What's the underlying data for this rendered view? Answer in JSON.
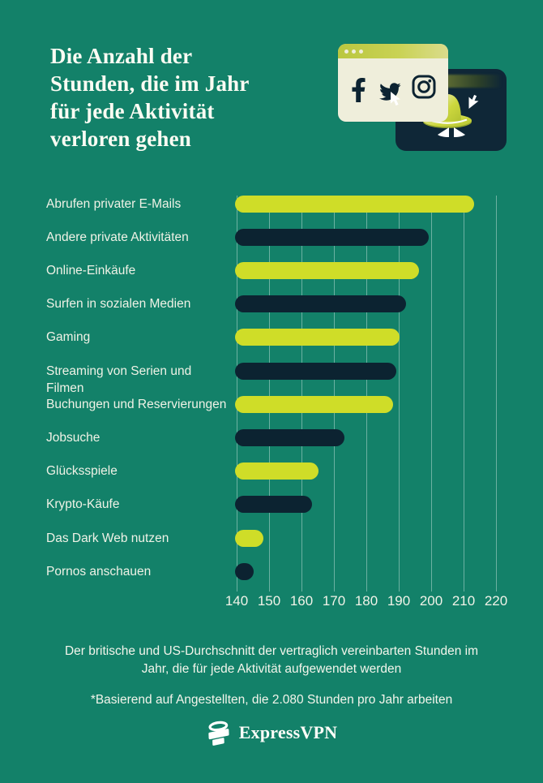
{
  "header": {
    "title_text": "Die Anzahl der\nStunden, die im Jahr\nfür jede Aktivität\nverloren gehen"
  },
  "illustration": {
    "icons": [
      "facebook-icon",
      "twitter-icon",
      "instagram-icon",
      "cursor-arrow-icon",
      "spy-hat-icon",
      "spy-eyes-icon"
    ],
    "window_dots": 3
  },
  "chart_data": {
    "type": "bar",
    "orientation": "horizontal",
    "title": "Die Anzahl der Stunden, die im Jahr für jede Aktivität verloren gehen",
    "categories": [
      "Abrufen privater E-Mails",
      "Andere private Aktivitäten",
      "Online-Einkäufe",
      "Surfen in sozialen Medien",
      "Gaming",
      "Streaming von Serien und Filmen",
      "Buchungen und Reservierungen",
      "Jobsuche",
      "Glücksspiele",
      "Krypto-Käufe",
      "Das Dark Web nutzen",
      "Pornos anschauen"
    ],
    "values": [
      213,
      199,
      196,
      192,
      190,
      189,
      188,
      173,
      165,
      163,
      148,
      145
    ],
    "unit": "Stunden pro Jahr",
    "xlim": [
      140,
      220
    ],
    "x_ticks": [
      "140",
      "150",
      "160",
      "170",
      "180",
      "190",
      "200",
      "210",
      "220"
    ],
    "grid": true,
    "legend": false,
    "bar_colors": {
      "odd_rows": "#CFDD28",
      "even_rows": "#0C2331"
    }
  },
  "footer": {
    "description": "Der britische und US-Durchschnitt der vertraglich vereinbarten Stunden im Jahr, die für jede Aktivität aufgewendet werden",
    "note": "*Basierend auf Angestellten, die 2.080 Stunden pro Jahr arbeiten",
    "brand": "ExpressVPN"
  },
  "colors": {
    "background": "#138169",
    "lime": "#CFDD28",
    "navy": "#0C2331",
    "cream": "#EFEEDB",
    "text": "#F3F5EB"
  }
}
